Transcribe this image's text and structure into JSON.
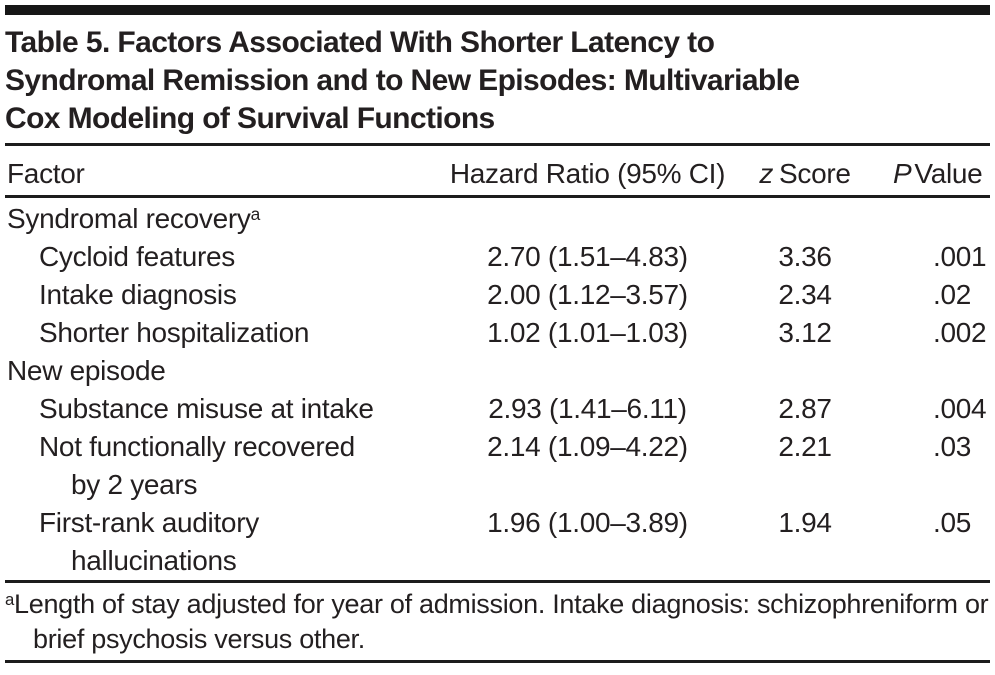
{
  "title": {
    "lines": [
      "Table 5. Factors Associated With Shorter Latency to",
      "Syndromal Remission and to New Episodes: Multivariable",
      "Cox Modeling of Survival Functions"
    ]
  },
  "columns": {
    "factor": "Factor",
    "hazard_ratio": "Hazard Ratio (95% CI)",
    "z_score": {
      "italic": "z",
      "rest": "Score"
    },
    "p_value": {
      "italic": "P",
      "rest": "Value"
    }
  },
  "rows": [
    {
      "type": "group",
      "factor": "Syndromal recovery",
      "sup": "a"
    },
    {
      "type": "item",
      "factor": "Cycloid features",
      "hr": "2.70 (1.51–4.83)",
      "z": "3.36",
      "p": ".001"
    },
    {
      "type": "item",
      "factor": "Intake diagnosis",
      "hr": "2.00 (1.12–3.57)",
      "z": "2.34",
      "p": ".02"
    },
    {
      "type": "item",
      "factor": "Shorter hospitalization",
      "hr": "1.02 (1.01–1.03)",
      "z": "3.12",
      "p": ".002"
    },
    {
      "type": "group",
      "factor": "New episode"
    },
    {
      "type": "item",
      "factor": "Substance misuse at intake",
      "hr": "2.93 (1.41–6.11)",
      "z": "2.87",
      "p": ".004"
    },
    {
      "type": "item",
      "factor": "Not functionally recovered",
      "cont": "by 2 years",
      "hr": "2.14 (1.09–4.22)",
      "z": "2.21",
      "p": ".03"
    },
    {
      "type": "item",
      "factor": "First-rank auditory",
      "cont": "hallucinations",
      "hr": "1.96 (1.00–3.89)",
      "z": "1.94",
      "p": ".05"
    }
  ],
  "footnote": {
    "marker": "a",
    "text": "Length of stay adjusted for year of admission. Intake diagnosis: schizophreniform or brief psychosis versus other."
  },
  "colors": {
    "text": "#231f20",
    "rule": "#1c1c1c",
    "top_bar": "#161616",
    "background": "#ffffff"
  }
}
